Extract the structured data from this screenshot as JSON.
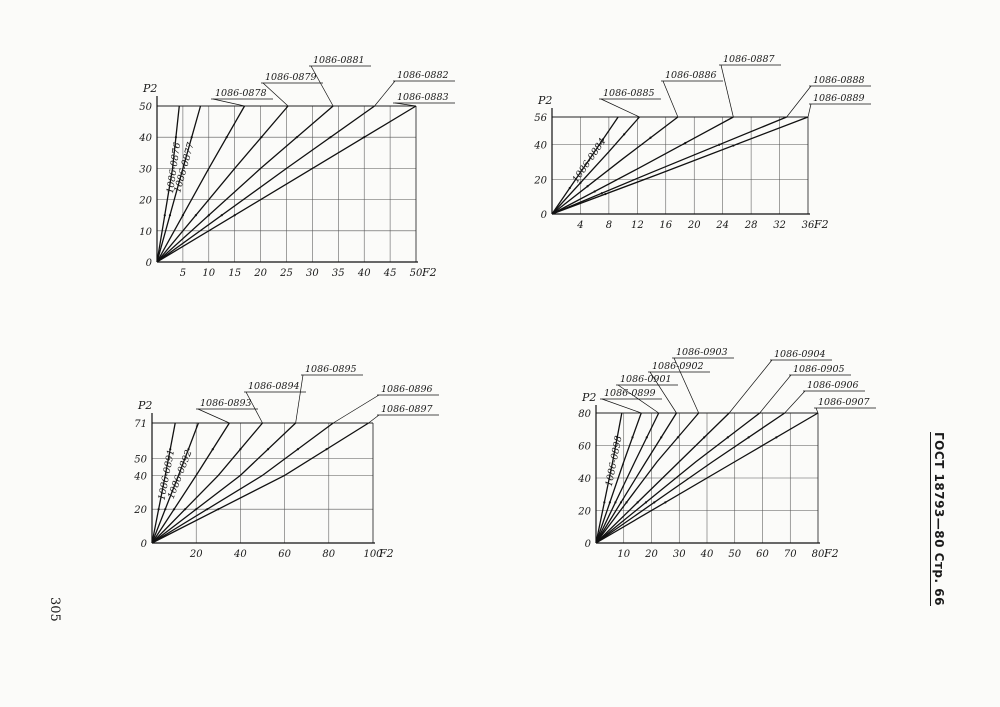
{
  "page": {
    "side_header": "ГОСТ 18793—80 Стр. 66",
    "page_number": "305"
  },
  "chart_data": [
    {
      "type": "line",
      "xlabel": "F2",
      "ylabel": "P2",
      "xlim": [
        0,
        50
      ],
      "ylim": [
        0,
        50
      ],
      "x_ticks": [
        "5",
        "10",
        "15",
        "20",
        "25",
        "30",
        "35",
        "40",
        "45",
        "50"
      ],
      "y_ticks": [
        "0",
        "10",
        "20",
        "30",
        "40",
        "50"
      ],
      "grid": true,
      "series": [
        {
          "name": "1086-0876",
          "x": [
            0,
            3,
            4.3
          ],
          "y": [
            0,
            30,
            50
          ],
          "label_style": "along-line"
        },
        {
          "name": "1086-0877",
          "x": [
            0,
            5,
            8.4
          ],
          "y": [
            0,
            30,
            50
          ],
          "label_style": "along-line"
        },
        {
          "name": "1086-0878",
          "x": [
            0,
            10,
            16.9
          ],
          "y": [
            0,
            30,
            50
          ],
          "label_style": "leader"
        },
        {
          "name": "1086-0879",
          "x": [
            0,
            15,
            25.3
          ],
          "y": [
            0,
            30,
            50
          ],
          "label_style": "leader"
        },
        {
          "name": "1086-0881",
          "x": [
            0,
            20,
            34
          ],
          "y": [
            0,
            30,
            50
          ],
          "label_style": "leader"
        },
        {
          "name": "1086-0882",
          "x": [
            0,
            25,
            42
          ],
          "y": [
            0,
            30,
            50
          ],
          "label_style": "leader"
        },
        {
          "name": "1086-0883",
          "x": [
            0,
            30,
            50
          ],
          "y": [
            0,
            30,
            50
          ],
          "label_style": "leader"
        }
      ]
    },
    {
      "type": "line",
      "xlabel": "F2",
      "ylabel": "P2",
      "xlim": [
        0,
        36
      ],
      "ylim": [
        0,
        56
      ],
      "x_ticks": [
        "4",
        "8",
        "12",
        "16",
        "20",
        "24",
        "28",
        "32",
        "36"
      ],
      "y_ticks": [
        "0",
        "20",
        "40",
        "56"
      ],
      "grid": true,
      "series": [
        {
          "name": "1086-0884",
          "x": [
            0,
            5,
            9.3
          ],
          "y": [
            0,
            30,
            56
          ],
          "label_style": "along-line"
        },
        {
          "name": "1086-0885",
          "x": [
            0,
            8,
            12.3
          ],
          "y": [
            0,
            36,
            56
          ],
          "label_style": "leader"
        },
        {
          "name": "1086-0886",
          "x": [
            0,
            10,
            17.7
          ],
          "y": [
            0,
            32,
            56
          ],
          "label_style": "leader"
        },
        {
          "name": "1086-0887",
          "x": [
            0,
            12,
            25.5
          ],
          "y": [
            0,
            26,
            56
          ],
          "label_style": "leader"
        },
        {
          "name": "1086-0888",
          "x": [
            0,
            14,
            33
          ],
          "y": [
            0,
            24,
            56
          ],
          "label_style": "leader"
        },
        {
          "name": "1086-0889",
          "x": [
            0,
            15,
            36
          ],
          "y": [
            0,
            23,
            56
          ],
          "label_style": "leader"
        }
      ]
    },
    {
      "type": "line",
      "xlabel": "F2",
      "ylabel": "P2",
      "xlim": [
        0,
        100
      ],
      "ylim": [
        0,
        71
      ],
      "x_ticks": [
        "20",
        "40",
        "60",
        "80",
        "100"
      ],
      "y_ticks": [
        "0",
        "20",
        "40",
        "50",
        "71"
      ],
      "grid": true,
      "series": [
        {
          "name": "1086-0891",
          "x": [
            0,
            6,
            10.5
          ],
          "y": [
            0,
            40,
            71
          ],
          "label_style": "along-line"
        },
        {
          "name": "1086-0892",
          "x": [
            0,
            12,
            21
          ],
          "y": [
            0,
            40,
            71
          ],
          "label_style": "along-line"
        },
        {
          "name": "1086-0893",
          "x": [
            0,
            20,
            35
          ],
          "y": [
            0,
            40,
            71
          ],
          "label_style": "leader"
        },
        {
          "name": "1086-0894",
          "x": [
            0,
            30,
            50
          ],
          "y": [
            0,
            40,
            71
          ],
          "label_style": "leader"
        },
        {
          "name": "1086-0895",
          "x": [
            0,
            40,
            65
          ],
          "y": [
            0,
            40,
            71
          ],
          "label_style": "leader"
        },
        {
          "name": "1086-0896",
          "x": [
            0,
            50,
            82
          ],
          "y": [
            0,
            40,
            71
          ],
          "label_style": "leader"
        },
        {
          "name": "1086-0897",
          "x": [
            0,
            60,
            98
          ],
          "y": [
            0,
            40,
            71
          ],
          "label_style": "leader"
        }
      ]
    },
    {
      "type": "line",
      "xlabel": "F2",
      "ylabel": "P2",
      "xlim": [
        0,
        80
      ],
      "ylim": [
        0,
        80
      ],
      "x_ticks": [
        "10",
        "20",
        "30",
        "40",
        "50",
        "60",
        "70",
        "80"
      ],
      "y_ticks": [
        "0",
        "20",
        "40",
        "60",
        "80"
      ],
      "grid": true,
      "series": [
        {
          "name": "1086-0898",
          "x": [
            0,
            6,
            9.3
          ],
          "y": [
            0,
            50,
            80
          ],
          "label_style": "along-line"
        },
        {
          "name": "1086-0899",
          "x": [
            0,
            10,
            16.3
          ],
          "y": [
            0,
            50,
            80
          ],
          "label_style": "leader"
        },
        {
          "name": "1086-0901",
          "x": [
            0,
            14,
            22.6
          ],
          "y": [
            0,
            50,
            80
          ],
          "label_style": "leader"
        },
        {
          "name": "1086-0902",
          "x": [
            0,
            18,
            29
          ],
          "y": [
            0,
            50,
            80
          ],
          "label_style": "leader"
        },
        {
          "name": "1086-0903",
          "x": [
            0,
            22,
            37
          ],
          "y": [
            0,
            50,
            80
          ],
          "label_style": "leader"
        },
        {
          "name": "1086-0904",
          "x": [
            0,
            30,
            48
          ],
          "y": [
            0,
            50,
            80
          ],
          "label_style": "leader"
        },
        {
          "name": "1086-0905",
          "x": [
            0,
            36,
            59
          ],
          "y": [
            0,
            50,
            80
          ],
          "label_style": "leader"
        },
        {
          "name": "1086-0906",
          "x": [
            0,
            42,
            68
          ],
          "y": [
            0,
            50,
            80
          ],
          "label_style": "leader"
        },
        {
          "name": "1086-0907",
          "x": [
            0,
            50,
            80
          ],
          "y": [
            0,
            50,
            80
          ],
          "label_style": "leader"
        }
      ]
    }
  ]
}
